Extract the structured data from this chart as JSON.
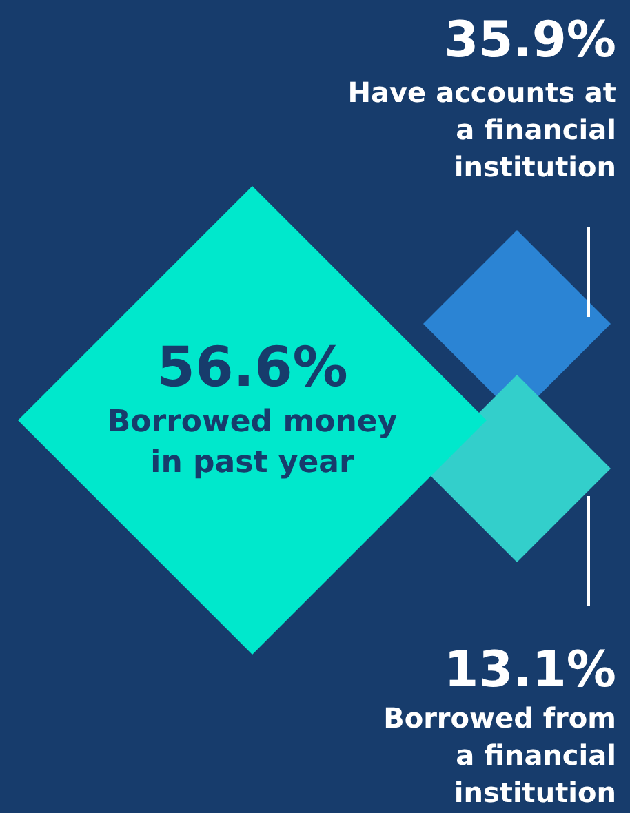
{
  "chart_data": {
    "type": "other",
    "categories": [
      "Borrowed money\nin past year",
      "Have accounts at\na financial\ninstitution",
      "Borrowed from\na financial\ninstitution"
    ],
    "values": [
      56.6,
      35.9,
      13.1
    ],
    "value_labels": [
      "56.6%",
      "35.9%",
      "13.1%"
    ],
    "colors": [
      "#00e8cc",
      "#2b84d4",
      "#33cfcb"
    ]
  }
}
